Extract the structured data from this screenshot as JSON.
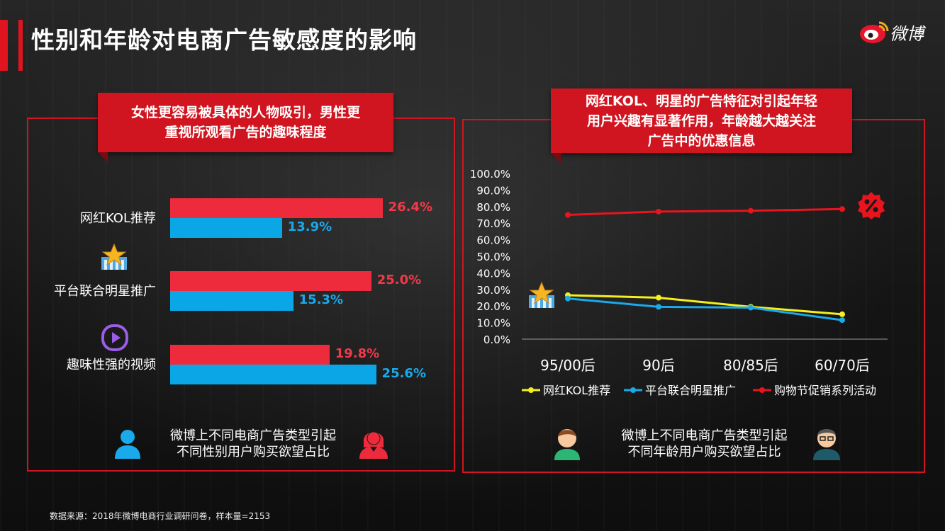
{
  "page": {
    "title": "性别和年龄对电商广告敏感度的影响",
    "logo_text": "微博",
    "source": "数据来源：2018年微博电商行业调研问卷，样本量=2153"
  },
  "left_panel": {
    "callout_lines": [
      "女性更容易被具体的人物吸引，男性更",
      "重视所观看广告的趣味程度"
    ],
    "note_lines": [
      "微博上不同电商广告类型引起",
      "不同性别用户购买欲望占比"
    ]
  },
  "right_panel": {
    "callout_lines": [
      "网红KOL、明星的广告特征对引起年轻",
      "用户兴趣有显著作用，年龄越大越关注",
      "广告中的优惠信息"
    ],
    "note_lines": [
      "微博上不同电商广告类型引起",
      "不同年龄用户购买欲望占比"
    ]
  },
  "colors": {
    "accent": "#d11520",
    "female": "#ee2b3c",
    "male": "#0aa6e6",
    "kol_line": "#f5ef1d",
    "star_line": "#1aa9ea",
    "promo_line": "#e8141e"
  },
  "chart_data": [
    {
      "type": "bar",
      "orientation": "horizontal",
      "categories": [
        "网红KOL推荐",
        "平台联合明星推广",
        "趣味性强的视频"
      ],
      "series": [
        {
          "values": [
            26.4,
            25.0,
            19.8
          ],
          "labels": [
            "26.4%",
            "25.0%",
            "19.8%"
          ]
        },
        {
          "values": [
            13.9,
            15.3,
            25.6
          ],
          "labels": [
            "13.9%",
            "15.3%",
            "25.6%"
          ]
        }
      ],
      "icons": [
        "star-icon",
        "play-icon"
      ],
      "legend_icons": [
        "male-user-icon",
        "female-user-icon"
      ]
    },
    {
      "type": "line",
      "x": [
        "95/00后",
        "90后",
        "80/85后",
        "60/70后"
      ],
      "ylim": [
        0,
        100
      ],
      "y_ticks": [
        "0.0%",
        "10.0%",
        "20.0%",
        "30.0%",
        "40.0%",
        "50.0%",
        "60.0%",
        "70.0%",
        "80.0%",
        "90.0%",
        "100.0%"
      ],
      "series": [
        {
          "name": "网红KOL推荐",
          "values": [
            26.5,
            25.0,
            19.5,
            15.0
          ]
        },
        {
          "name": "平台联合明星推广",
          "values": [
            24.5,
            19.5,
            19.0,
            11.5
          ]
        },
        {
          "name": "购物节促销系列活动",
          "values": [
            75.0,
            77.0,
            77.5,
            78.5
          ]
        }
      ],
      "legend_placement": "bottom",
      "grid": false,
      "icons": [
        "star-icon",
        "discount-icon",
        "young-user-icon",
        "older-user-icon"
      ]
    }
  ]
}
